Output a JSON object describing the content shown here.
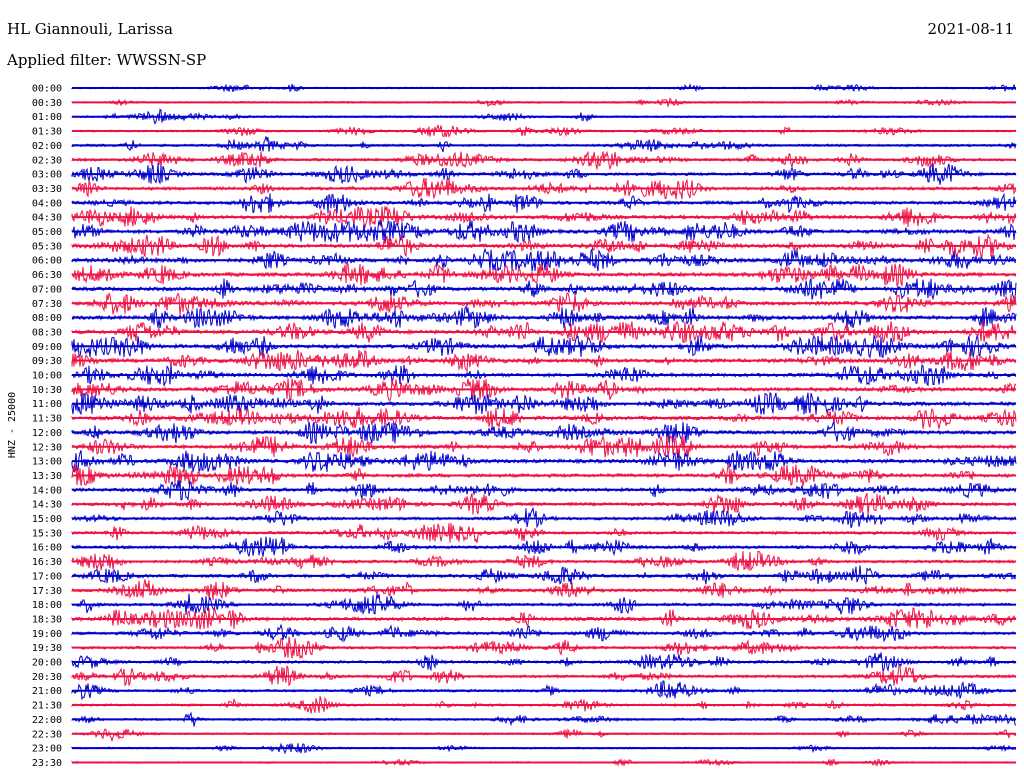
{
  "header": {
    "station": "HL Giannouli, Larissa",
    "date": "2021-08-11",
    "filter_label": "Applied filter: WWSSN-SP"
  },
  "chart_data": {
    "type": "helicorder",
    "channel_label": "HNZ - 25000",
    "row_labels": [
      "00:00",
      "00:30",
      "01:00",
      "01:30",
      "02:00",
      "02:30",
      "03:00",
      "03:30",
      "04:00",
      "04:30",
      "05:00",
      "05:30",
      "06:00",
      "06:30",
      "07:00",
      "07:30",
      "08:00",
      "08:30",
      "09:00",
      "09:30",
      "10:00",
      "10:30",
      "11:00",
      "11:30",
      "12:00",
      "12:30",
      "13:00",
      "13:30",
      "14:00",
      "14:30",
      "15:00",
      "15:30",
      "16:00",
      "16:30",
      "17:00",
      "17:30",
      "18:00",
      "18:30",
      "19:00",
      "19:30",
      "20:00",
      "20:30",
      "21:00",
      "21:30",
      "22:00",
      "22:30",
      "23:00",
      "23:30"
    ],
    "trace_colors": [
      "#0000cc",
      "#ee1144"
    ],
    "activity": [
      0.15,
      0.15,
      0.2,
      0.25,
      0.35,
      0.45,
      0.55,
      0.6,
      0.65,
      0.7,
      0.75,
      0.75,
      0.8,
      0.8,
      0.75,
      0.75,
      0.75,
      0.8,
      0.8,
      0.75,
      0.7,
      0.75,
      0.8,
      0.75,
      0.7,
      0.7,
      0.75,
      0.7,
      0.65,
      0.6,
      0.55,
      0.5,
      0.55,
      0.5,
      0.55,
      0.55,
      0.55,
      0.7,
      0.5,
      0.45,
      0.5,
      0.5,
      0.4,
      0.35,
      0.3,
      0.2,
      0.15,
      0.1
    ]
  }
}
